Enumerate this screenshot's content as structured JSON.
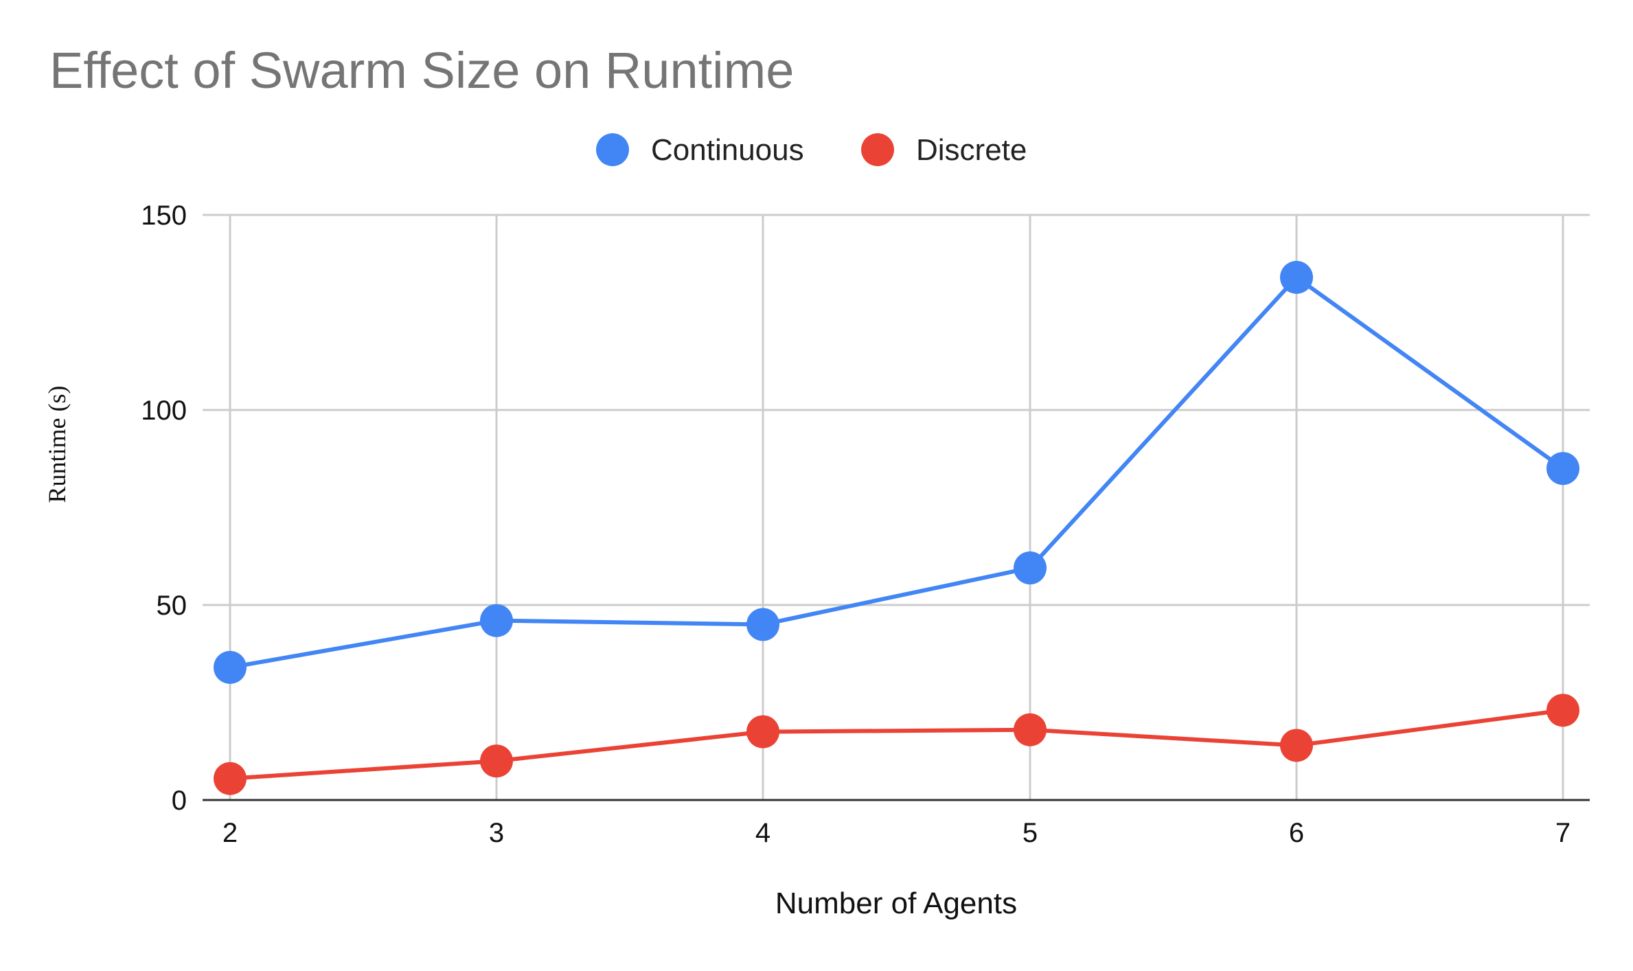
{
  "chart_data": {
    "type": "line",
    "title": "Effect of Swarm Size on Runtime",
    "xlabel": "Number of Agents",
    "ylabel": "Runtime (s)",
    "x": [
      2,
      3,
      4,
      5,
      6,
      7
    ],
    "x_tick_labels": [
      "2",
      "3",
      "4",
      "5",
      "6",
      "7"
    ],
    "ylim": [
      0,
      150
    ],
    "y_ticks": [
      0,
      50,
      100,
      150
    ],
    "y_tick_labels": [
      "0",
      "50",
      "100",
      "150"
    ],
    "grid": true,
    "legend_position": "top-center",
    "series": [
      {
        "name": "Continuous",
        "color": "#4285f4",
        "values": [
          34,
          46,
          45,
          59.5,
          134,
          85
        ]
      },
      {
        "name": "Discrete",
        "color": "#ea4335",
        "values": [
          5.5,
          10,
          17.5,
          18,
          14,
          23
        ]
      }
    ]
  }
}
